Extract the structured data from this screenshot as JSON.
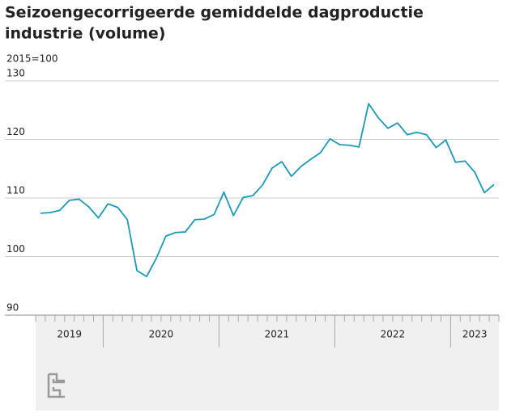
{
  "chart_data": {
    "type": "line",
    "title": [
      "Seizoengecorrigeerde gemiddelde dagproductie",
      "industrie (volume)"
    ],
    "y_unit_label": "2015=100",
    "categories": [
      "2019",
      null,
      null,
      null,
      null,
      null,
      null,
      "2020",
      null,
      null,
      null,
      null,
      null,
      null,
      null,
      null,
      null,
      null,
      null,
      "2021",
      null,
      null,
      null,
      null,
      null,
      null,
      null,
      null,
      null,
      null,
      null,
      "2022",
      null,
      null,
      null,
      null,
      null,
      null,
      null,
      null,
      null,
      null,
      null,
      "2023",
      null,
      null,
      null,
      null
    ],
    "values": [
      107.4,
      107.5,
      107.9,
      109.6,
      109.8,
      108.5,
      106.6,
      109.0,
      108.4,
      106.3,
      97.6,
      96.6,
      99.7,
      103.5,
      104.1,
      104.2,
      106.3,
      106.4,
      107.2,
      111.0,
      107.0,
      110.1,
      110.4,
      112.2,
      115.1,
      116.2,
      113.7,
      115.4,
      116.6,
      117.7,
      120.1,
      119.1,
      119.0,
      118.7,
      126.1,
      123.7,
      121.9,
      122.8,
      120.8,
      121.2,
      120.8,
      118.6,
      119.9,
      116.1,
      116.3,
      114.4,
      110.9,
      112.3
    ],
    "color": "#1b9ab5",
    "ylim": [
      90,
      130
    ],
    "yticks": [
      90,
      100,
      110,
      120,
      130
    ],
    "grid": true
  }
}
